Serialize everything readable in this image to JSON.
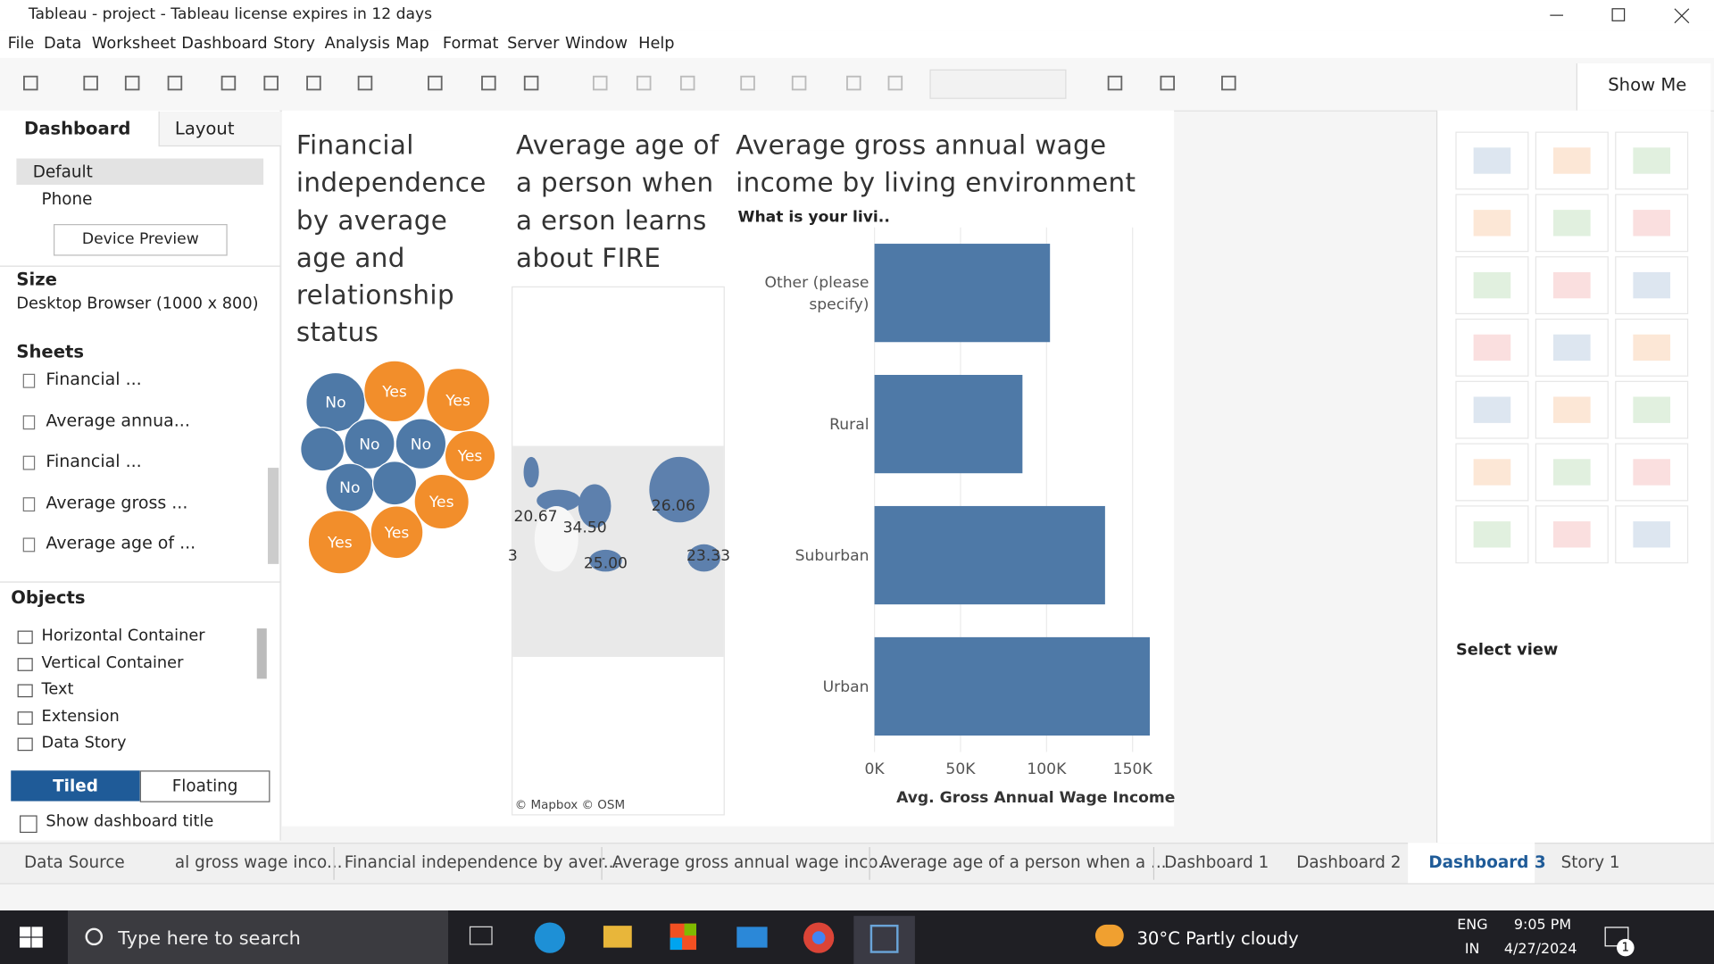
{
  "window": {
    "title": "Tableau - project - Tableau license expires in 12 days"
  },
  "menu": [
    "File",
    "Data",
    "Worksheet",
    "Dashboard",
    "Story",
    "Analysis",
    "Map",
    "Format",
    "Server",
    "Window",
    "Help"
  ],
  "toolbar": {
    "show_me": "Show Me"
  },
  "side_panel": {
    "tabs": [
      "Dashboard",
      "Layout"
    ],
    "devices": [
      "Default",
      "Phone"
    ],
    "device_preview": "Device Preview",
    "size": {
      "label": "Size",
      "value": "Desktop Browser (1000 x 800)"
    },
    "sheets": {
      "label": "Sheets",
      "items": [
        "Financial ...",
        "Average annua...",
        "Financial ...",
        "Average gross ...",
        "Average age of ..."
      ]
    },
    "objects": {
      "label": "Objects",
      "items": [
        "Horizontal Container",
        "Vertical Container",
        "Text",
        "Extension",
        "Data Story"
      ]
    },
    "layout_modes": [
      "Tiled",
      "Floating"
    ],
    "show_dashboard_title": "Show dashboard title"
  },
  "bubble_sheet": {
    "title": "Financial independence by average age and relationship status",
    "bubbles": [
      {
        "label": "No",
        "color": "#4e79a7"
      },
      {
        "label": "Yes",
        "color": "#f28e2b"
      },
      {
        "label": "Yes",
        "color": "#f28e2b"
      },
      {
        "label": null,
        "color": "#4e79a7"
      },
      {
        "label": "No",
        "color": "#4e79a7"
      },
      {
        "label": "No",
        "color": "#4e79a7"
      },
      {
        "label": "Yes",
        "color": "#f28e2b"
      },
      {
        "label": "No",
        "color": "#4e79a7"
      },
      {
        "label": null,
        "color": "#4e79a7"
      },
      {
        "label": "Yes",
        "color": "#f28e2b"
      },
      {
        "label": "Yes",
        "color": "#f28e2b"
      },
      {
        "label": "Yes",
        "color": "#f28e2b"
      }
    ]
  },
  "map_sheet": {
    "title": "Average age of a person when a erson learns about FIRE",
    "labels": [
      "20.67",
      "34.50",
      "26.06",
      "25.00",
      "23.33",
      "3"
    ],
    "credit": "© Mapbox © OSM"
  },
  "chart_data": {
    "type": "bar",
    "orientation": "horizontal",
    "title": "Average gross annual wage income by living environment",
    "row_header": "What is your livi..",
    "categories": [
      "Other (please specify)",
      "Rural",
      "Suburban",
      "Urban"
    ],
    "values": [
      102000,
      86000,
      134000,
      160000
    ],
    "color": "#4e79a7",
    "xlim": [
      0,
      162000
    ],
    "xticks": [
      {
        "value": 0,
        "label": "0K"
      },
      {
        "value": 50000,
        "label": "50K"
      },
      {
        "value": 100000,
        "label": "100K"
      },
      {
        "value": 150000,
        "label": "150K"
      }
    ],
    "x_label": "Avg. Gross Annual Wage Income",
    "grid": true
  },
  "show_me": {
    "select_view": "Select view"
  },
  "sheet_tabs": [
    "Data Source",
    "al gross wage inco...",
    "Financial independence by aver...",
    "Average gross annual wage inco...",
    "Average age of a person when a ...",
    "Dashboard 1",
    "Dashboard 2",
    "Dashboard 3",
    "Story 1"
  ],
  "taskbar": {
    "search": "Type here to search",
    "weather": "30°C  Partly cloudy",
    "language": [
      "ENG",
      "IN"
    ],
    "time": "9:05 PM",
    "date": "4/27/2024",
    "notifications": "1"
  }
}
